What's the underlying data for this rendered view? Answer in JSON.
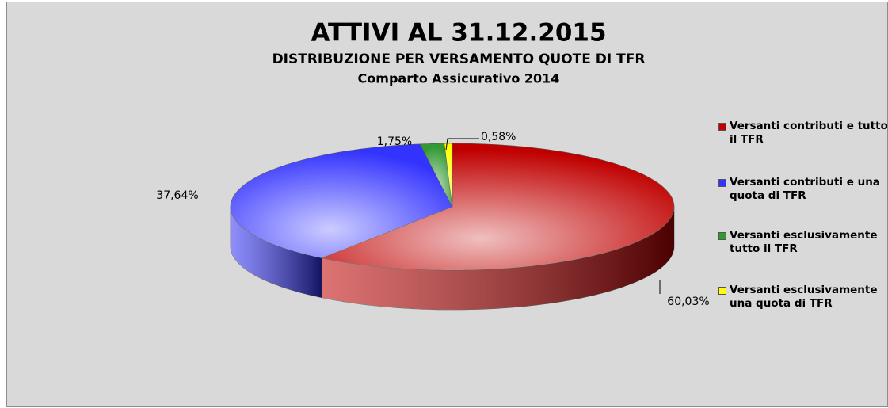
{
  "chart_data": {
    "type": "pie",
    "title": "ATTIVI AL 31.12.2015",
    "subtitle": "DISTRIBUZIONE PER VERSAMENTO QUOTE DI TFR",
    "subtitle2": "Comparto Assicurativo 2014",
    "categories": [
      "Versanti contributi e tutto il TFR",
      "Versanti contributi e una quota di TFR",
      "Versanti esclusivamente tutto il TFR",
      "Versanti esclusivamente una quota di TFR"
    ],
    "values": [
      60.03,
      37.64,
      1.75,
      0.58
    ],
    "value_labels": [
      "60,03%",
      "37,64%",
      "1,75%",
      "0,58%"
    ],
    "colors": [
      "#c00000",
      "#3333ff",
      "#339933",
      "#ffff00"
    ],
    "legend": "right"
  }
}
